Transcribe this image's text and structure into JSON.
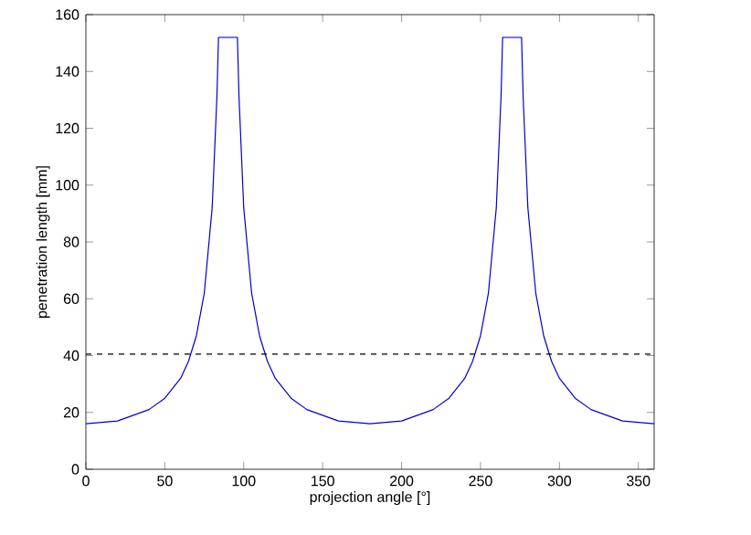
{
  "chart_data": {
    "type": "line",
    "xlabel": "projection angle [°]",
    "ylabel": "penetration length [mm]",
    "x": [
      0,
      20,
      40,
      50,
      60,
      65,
      70,
      75,
      80,
      83,
      84,
      90,
      96,
      97,
      100,
      105,
      110,
      115,
      120,
      130,
      140,
      160,
      180,
      200,
      220,
      230,
      240,
      245,
      250,
      255,
      260,
      263,
      264,
      270,
      276,
      277,
      280,
      285,
      290,
      295,
      300,
      310,
      320,
      340,
      360
    ],
    "series": [
      {
        "color": "#0000cc",
        "values": [
          16,
          17,
          21,
          25,
          32,
          38,
          47,
          62,
          92,
          131,
          152,
          152,
          152,
          131,
          92,
          62,
          47,
          38,
          32,
          25,
          21,
          17,
          16,
          17,
          21,
          25,
          32,
          38,
          47,
          62,
          92,
          131,
          152,
          152,
          152,
          131,
          92,
          62,
          47,
          38,
          32,
          25,
          21,
          17,
          16
        ]
      }
    ],
    "xlim": [
      0,
      360
    ],
    "ylim": [
      0,
      160
    ],
    "xticks": [
      0,
      50,
      100,
      150,
      200,
      250,
      300,
      350
    ],
    "yticks": [
      0,
      20,
      40,
      60,
      80,
      100,
      120,
      140,
      160
    ],
    "ref_lines": [
      {
        "axis": "y",
        "value": 40.5,
        "color": "#000000",
        "line_style": "dashed"
      }
    ],
    "grid": false,
    "line_style": "solid",
    "marker": "none"
  }
}
